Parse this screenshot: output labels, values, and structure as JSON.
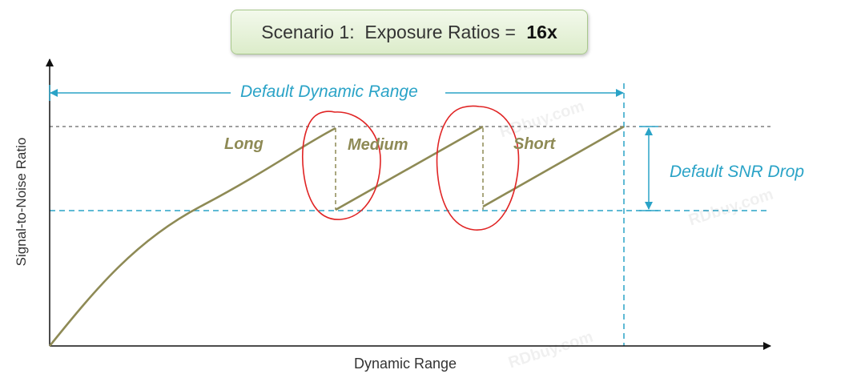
{
  "title": {
    "text": "Scenario 1:  Exposure Ratios = ",
    "bold": "16x"
  },
  "axes": {
    "x_label": "Dynamic Range",
    "y_label": "Signal-to-Noise Ratio"
  },
  "annotations": {
    "dynamic_range": "Default Dynamic Range",
    "snr_drop": "Default SNR Drop"
  },
  "segments": {
    "long": "Long",
    "medium": "Medium",
    "short": "Short"
  },
  "watermarks": [
    "RDbuy.com",
    "RDbuy.com",
    "RDbuy.com"
  ],
  "colors": {
    "curve": "#8e8a55",
    "cyan": "#2aa3c7",
    "circle": "#e02424",
    "axis": "#111111",
    "guide": "#666666"
  }
}
